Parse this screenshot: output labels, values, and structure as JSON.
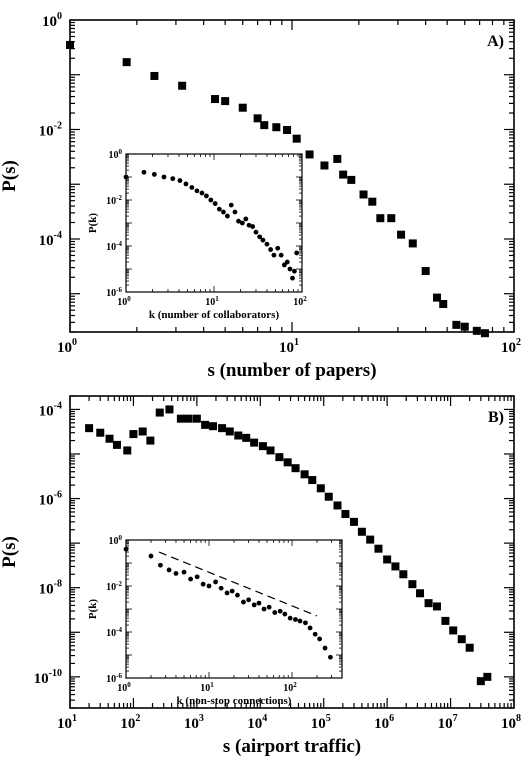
{
  "chart_data": [
    {
      "id": "A",
      "type": "scatter",
      "panel_label": "A)",
      "xlabel": "s (number of papers)",
      "ylabel": "P(s)",
      "xscale": "log",
      "yscale": "log",
      "xlim": [
        1,
        100
      ],
      "ylim": [
        2e-06,
        1
      ],
      "x_ticks": [
        {
          "base": "10",
          "exp": "0",
          "v": 1
        },
        {
          "base": "10",
          "exp": "1",
          "v": 10
        },
        {
          "base": "10",
          "exp": "2",
          "v": 100
        }
      ],
      "y_ticks": [
        {
          "base": "10",
          "exp": "0",
          "v": 1
        },
        {
          "base": "10",
          "exp": "-2",
          "v": 0.01
        },
        {
          "base": "10",
          "exp": "-4",
          "v": 0.0001
        }
      ],
      "marker": "square",
      "points": [
        [
          1,
          0.35
        ],
        [
          1.8,
          0.17
        ],
        [
          2.4,
          0.095
        ],
        [
          3.2,
          0.063
        ],
        [
          4.5,
          0.036
        ],
        [
          5,
          0.033
        ],
        [
          6,
          0.025
        ],
        [
          7,
          0.016
        ],
        [
          7.5,
          0.012
        ],
        [
          8.5,
          0.011
        ],
        [
          9.5,
          0.0098
        ],
        [
          10.5,
          0.0068
        ],
        [
          12,
          0.0035
        ],
        [
          14,
          0.0022
        ],
        [
          16,
          0.0029
        ],
        [
          17,
          0.0015
        ],
        [
          18.5,
          0.0012
        ],
        [
          21,
          0.00065
        ],
        [
          23,
          0.00048
        ],
        [
          25,
          0.00024
        ],
        [
          28,
          0.00024
        ],
        [
          31,
          0.00012
        ],
        [
          35,
          8.3e-05
        ],
        [
          40,
          2.6e-05
        ],
        [
          45,
          8.5e-06
        ],
        [
          48,
          6.5e-06
        ],
        [
          55,
          2.7e-06
        ],
        [
          60,
          2.5e-06
        ],
        [
          68,
          2.1e-06
        ],
        [
          74,
          1.9e-06
        ]
      ],
      "inset": {
        "type": "scatter",
        "xlabel": "k (number of collaborators)",
        "ylabel": "P(k)",
        "xscale": "log",
        "yscale": "log",
        "xlim": [
          1,
          100
        ],
        "ylim": [
          1e-06,
          1
        ],
        "x_ticks": [
          {
            "base": "10",
            "exp": "0",
            "v": 1
          },
          {
            "base": "10",
            "exp": "1",
            "v": 10
          },
          {
            "base": "10",
            "exp": "2",
            "v": 100
          }
        ],
        "y_ticks": [
          {
            "base": "10",
            "exp": "0",
            "v": 1
          },
          {
            "base": "10",
            "exp": "-2",
            "v": 0.01
          },
          {
            "base": "10",
            "exp": "-4",
            "v": 0.0001
          },
          {
            "base": "10",
            "exp": "-6",
            "v": 1e-06
          }
        ],
        "marker": "circle",
        "points": [
          [
            1,
            0.1
          ],
          [
            1.6,
            0.16
          ],
          [
            2.1,
            0.13
          ],
          [
            2.7,
            0.1
          ],
          [
            3.4,
            0.085
          ],
          [
            4.1,
            0.07
          ],
          [
            4.8,
            0.05
          ],
          [
            5.6,
            0.035
          ],
          [
            6.4,
            0.025
          ],
          [
            7.3,
            0.02
          ],
          [
            8.2,
            0.015
          ],
          [
            9.2,
            0.01
          ],
          [
            10.3,
            0.007
          ],
          [
            11.5,
            0.004
          ],
          [
            12.8,
            0.003
          ],
          [
            14.2,
            0.002
          ],
          [
            15.7,
            0.006
          ],
          [
            17.3,
            0.003
          ],
          [
            19,
            0.0012
          ],
          [
            21,
            0.001
          ],
          [
            23,
            0.0015
          ],
          [
            25,
            0.0008
          ],
          [
            27.5,
            0.0007
          ],
          [
            30,
            0.0004
          ],
          [
            33,
            0.00025
          ],
          [
            36,
            0.00018
          ],
          [
            40,
            0.00012
          ],
          [
            44,
            7e-05
          ],
          [
            48,
            4e-05
          ],
          [
            53,
            8e-05
          ],
          [
            58,
            4e-05
          ],
          [
            63,
            1.5e-05
          ],
          [
            68,
            2e-05
          ],
          [
            73,
            1e-05
          ],
          [
            78,
            4e-06
          ],
          [
            82,
            8e-06
          ],
          [
            87,
            5e-05
          ]
        ]
      }
    },
    {
      "id": "B",
      "type": "scatter",
      "panel_label": "B)",
      "xlabel": "s (airport traffic)",
      "ylabel": "P(s)",
      "xscale": "log",
      "yscale": "log",
      "xlim": [
        10,
        100000000
      ],
      "ylim": [
        2e-11,
        0.0002
      ],
      "x_ticks": [
        {
          "base": "10",
          "exp": "1",
          "v": 10
        },
        {
          "base": "10",
          "exp": "2",
          "v": 100
        },
        {
          "base": "10",
          "exp": "3",
          "v": 1000
        },
        {
          "base": "10",
          "exp": "4",
          "v": 10000
        },
        {
          "base": "10",
          "exp": "5",
          "v": 100000
        },
        {
          "base": "10",
          "exp": "6",
          "v": 1000000
        },
        {
          "base": "10",
          "exp": "7",
          "v": 10000000
        },
        {
          "base": "10",
          "exp": "8",
          "v": 100000000
        }
      ],
      "y_ticks": [
        {
          "base": "10",
          "exp": "-4",
          "v": 0.0001
        },
        {
          "base": "10",
          "exp": "-6",
          "v": 1e-06
        },
        {
          "base": "10",
          "exp": "-8",
          "v": 1e-08
        },
        {
          "base": "10",
          "exp": "-10",
          "v": 1e-10
        }
      ],
      "marker": "square",
      "points": [
        [
          20,
          3.8e-05
        ],
        [
          30,
          3e-05
        ],
        [
          42,
          2.2e-05
        ],
        [
          55,
          1.6e-05
        ],
        [
          80,
          1.2e-05
        ],
        [
          100,
          2.8e-05
        ],
        [
          140,
          3.2e-05
        ],
        [
          185,
          2e-05
        ],
        [
          260,
          8.5e-05
        ],
        [
          370,
          0.0001
        ],
        [
          560,
          6.2e-05
        ],
        [
          740,
          6.2e-05
        ],
        [
          1000,
          6.2e-05
        ],
        [
          1350,
          4.5e-05
        ],
        [
          1800,
          4.2e-05
        ],
        [
          2500,
          3.8e-05
        ],
        [
          3300,
          3.2e-05
        ],
        [
          4500,
          2.6e-05
        ],
        [
          6000,
          2.3e-05
        ],
        [
          8000,
          1.8e-05
        ],
        [
          11000,
          1.5e-05
        ],
        [
          14500,
          1.2e-05
        ],
        [
          20000,
          8.5e-06
        ],
        [
          27000,
          6.5e-06
        ],
        [
          36000,
          4.8e-06
        ],
        [
          50000,
          3.5e-06
        ],
        [
          66000,
          2.6e-06
        ],
        [
          90000,
          1.7e-06
        ],
        [
          120000,
          1.1e-06
        ],
        [
          165000,
          7e-07
        ],
        [
          220000,
          4.5e-07
        ],
        [
          300000,
          3e-07
        ],
        [
          400000,
          1.8e-07
        ],
        [
          540000,
          1.2e-07
        ],
        [
          730000,
          7.5e-08
        ],
        [
          1000000,
          4.3e-08
        ],
        [
          1350000,
          3e-08
        ],
        [
          1800000,
          2e-08
        ],
        [
          2500000,
          1.2e-08
        ],
        [
          3300000,
          7.5e-09
        ],
        [
          4500000,
          4.5e-09
        ],
        [
          6100000,
          3.8e-09
        ],
        [
          8300000,
          1.8e-09
        ],
        [
          11000000,
          1.1e-09
        ],
        [
          15000000,
          7e-10
        ],
        [
          20000000,
          4.5e-10
        ],
        [
          30000000,
          8e-11
        ],
        [
          38000000,
          1e-10
        ]
      ],
      "inset": {
        "type": "scatter",
        "xlabel": "k (non-stop connections)",
        "ylabel": "P(k)",
        "xscale": "log",
        "yscale": "log",
        "xlim": [
          1,
          400
        ],
        "ylim": [
          1e-06,
          1
        ],
        "x_ticks": [
          {
            "base": "10",
            "exp": "0",
            "v": 1
          },
          {
            "base": "10",
            "exp": "1",
            "v": 10
          },
          {
            "base": "10",
            "exp": "2",
            "v": 100
          }
        ],
        "y_ticks": [
          {
            "base": "10",
            "exp": "0",
            "v": 1
          },
          {
            "base": "10",
            "exp": "-2",
            "v": 0.01
          },
          {
            "base": "10",
            "exp": "-4",
            "v": 0.0001
          },
          {
            "base": "10",
            "exp": "-6",
            "v": 1e-06
          }
        ],
        "marker": "circle",
        "reference_line": [
          [
            2.5,
            0.3
          ],
          [
            200,
            0.0005
          ]
        ],
        "points": [
          [
            1,
            0.4
          ],
          [
            2,
            0.2
          ],
          [
            2.6,
            0.08
          ],
          [
            3.3,
            0.05
          ],
          [
            4,
            0.035
          ],
          [
            5,
            0.04
          ],
          [
            6,
            0.02
          ],
          [
            7.2,
            0.025
          ],
          [
            8.5,
            0.012
          ],
          [
            10,
            0.01
          ],
          [
            12,
            0.015
          ],
          [
            14,
            0.008
          ],
          [
            16.5,
            0.005
          ],
          [
            19,
            0.006
          ],
          [
            22,
            0.004
          ],
          [
            26,
            0.002
          ],
          [
            30,
            0.0025
          ],
          [
            35,
            0.0015
          ],
          [
            40,
            0.0018
          ],
          [
            46,
            0.001
          ],
          [
            53,
            0.0012
          ],
          [
            62,
            0.0007
          ],
          [
            72,
            0.0008
          ],
          [
            82,
            0.0006
          ],
          [
            95,
            0.0004
          ],
          [
            110,
            0.00035
          ],
          [
            125,
            0.0003
          ],
          [
            145,
            0.00025
          ],
          [
            165,
            0.00015
          ],
          [
            190,
            8e-05
          ],
          [
            215,
            5e-05
          ],
          [
            250,
            2e-05
          ],
          [
            290,
            8e-06
          ]
        ]
      }
    }
  ]
}
